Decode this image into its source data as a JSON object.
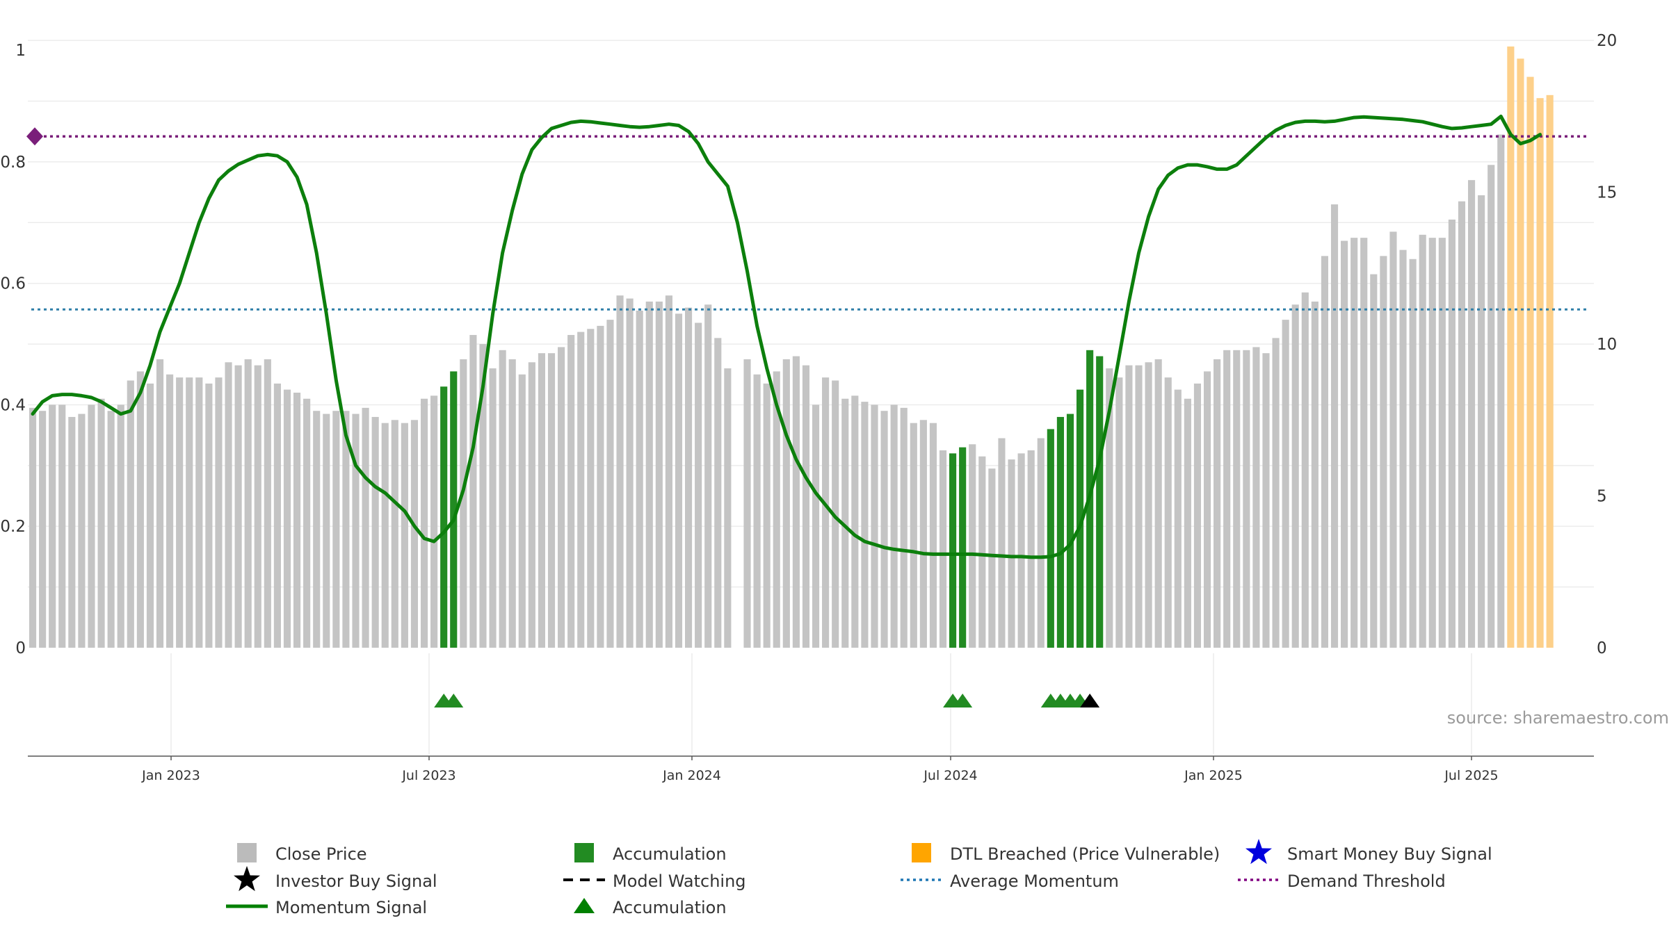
{
  "chart_data": {
    "type": "bar",
    "y_left": {
      "ticks": [
        "0",
        "0.2",
        "0.4",
        "0.6",
        "0.8",
        "1"
      ],
      "range": [
        0,
        1
      ]
    },
    "y_right": {
      "ticks": [
        "0",
        "5",
        "10",
        "15",
        "20"
      ],
      "range": [
        0,
        20
      ]
    },
    "x_ticks": [
      "Jan 2023",
      "Jul 2023",
      "Jan 2024",
      "Jul 2024",
      "Jan 2025",
      "Jul 2025"
    ],
    "grid": true,
    "legend_position": "bottom",
    "source": "source: sharemaestro.com",
    "average_momentum": 0.557,
    "demand_threshold": 0.842,
    "series": {
      "close_price": [
        7.9,
        7.8,
        8.0,
        8.0,
        7.6,
        7.7,
        8.0,
        8.2,
        7.8,
        8.0,
        8.8,
        9.1,
        8.7,
        9.5,
        9.0,
        8.9,
        8.9,
        8.9,
        8.7,
        8.9,
        9.4,
        9.3,
        9.5,
        9.3,
        9.5,
        8.7,
        8.5,
        8.4,
        8.2,
        7.8,
        7.7,
        7.8,
        7.8,
        7.7,
        7.9,
        7.6,
        7.4,
        7.5,
        7.4,
        7.5,
        8.2,
        8.3,
        8.6,
        9.1,
        9.5,
        10.3,
        10.0,
        9.2,
        9.8,
        9.5,
        9.0,
        9.4,
        9.7,
        9.7,
        9.9,
        10.3,
        10.4,
        10.5,
        10.6,
        10.8,
        11.6,
        11.5,
        11.1,
        11.4,
        11.4,
        11.6,
        11.0,
        11.2,
        10.7,
        11.3,
        10.2,
        9.2,
        0,
        9.5,
        9.0,
        8.7,
        9.1,
        9.5,
        9.6,
        9.3,
        8.0,
        8.9,
        8.8,
        8.2,
        8.3,
        8.1,
        8.0,
        7.8,
        8.0,
        7.9,
        7.4,
        7.5,
        7.4,
        6.5,
        6.4,
        6.6,
        6.7,
        6.3,
        5.9,
        6.9,
        6.2,
        6.4,
        6.5,
        6.9,
        7.2,
        7.6,
        7.7,
        8.5,
        9.8,
        9.6,
        9.2,
        8.9,
        9.3,
        9.3,
        9.4,
        9.5,
        8.9,
        8.5,
        8.2,
        8.7,
        9.1,
        9.5,
        9.8,
        9.8,
        9.8,
        9.9,
        9.7,
        10.2,
        10.8,
        11.3,
        11.7,
        11.4,
        12.9,
        14.6,
        13.4,
        13.5,
        13.5,
        12.3,
        12.9,
        13.7,
        13.1,
        12.8,
        13.6,
        13.5,
        13.5,
        14.1,
        14.7,
        15.4,
        14.9,
        15.9,
        16.9
      ],
      "accumulation_bar_indices": [
        42,
        43,
        94,
        95,
        104,
        105,
        106,
        107,
        108,
        109
      ],
      "dtl_breached": [
        19.8,
        19.4,
        18.8,
        18.1,
        18.2
      ],
      "momentum_start_index": 0,
      "momentum_end_index": 156,
      "momentum_points": [
        [
          0,
          0.385
        ],
        [
          1,
          0.405
        ],
        [
          2,
          0.415
        ],
        [
          3,
          0.417
        ],
        [
          4,
          0.417
        ],
        [
          5,
          0.415
        ],
        [
          6,
          0.412
        ],
        [
          7,
          0.405
        ],
        [
          8,
          0.395
        ],
        [
          9,
          0.385
        ],
        [
          10,
          0.39
        ],
        [
          11,
          0.42
        ],
        [
          12,
          0.465
        ],
        [
          13,
          0.52
        ],
        [
          14,
          0.56
        ],
        [
          15,
          0.6
        ],
        [
          16,
          0.65
        ],
        [
          17,
          0.7
        ],
        [
          18,
          0.74
        ],
        [
          19,
          0.77
        ],
        [
          20,
          0.785
        ],
        [
          21,
          0.796
        ],
        [
          22,
          0.803
        ],
        [
          23,
          0.81
        ],
        [
          24,
          0.812
        ],
        [
          25,
          0.81
        ],
        [
          26,
          0.8
        ],
        [
          27,
          0.775
        ],
        [
          28,
          0.73
        ],
        [
          29,
          0.65
        ],
        [
          30,
          0.55
        ],
        [
          31,
          0.44
        ],
        [
          32,
          0.35
        ],
        [
          33,
          0.3
        ],
        [
          34,
          0.28
        ],
        [
          35,
          0.265
        ],
        [
          36,
          0.255
        ],
        [
          37,
          0.24
        ],
        [
          38,
          0.225
        ],
        [
          39,
          0.2
        ],
        [
          40,
          0.18
        ],
        [
          41,
          0.175
        ],
        [
          42,
          0.19
        ],
        [
          43,
          0.21
        ],
        [
          44,
          0.26
        ],
        [
          45,
          0.33
        ],
        [
          46,
          0.43
        ],
        [
          47,
          0.55
        ],
        [
          48,
          0.65
        ],
        [
          49,
          0.72
        ],
        [
          50,
          0.78
        ],
        [
          51,
          0.82
        ],
        [
          52,
          0.84
        ],
        [
          53,
          0.855
        ],
        [
          54,
          0.86
        ],
        [
          55,
          0.865
        ],
        [
          56,
          0.867
        ],
        [
          57,
          0.866
        ],
        [
          58,
          0.864
        ],
        [
          59,
          0.862
        ],
        [
          60,
          0.86
        ],
        [
          61,
          0.858
        ],
        [
          62,
          0.857
        ],
        [
          63,
          0.858
        ],
        [
          64,
          0.86
        ],
        [
          65,
          0.862
        ],
        [
          66,
          0.86
        ],
        [
          67,
          0.85
        ],
        [
          68,
          0.83
        ],
        [
          69,
          0.8
        ],
        [
          70,
          0.78
        ],
        [
          71,
          0.76
        ],
        [
          72,
          0.7
        ],
        [
          73,
          0.62
        ],
        [
          74,
          0.53
        ],
        [
          75,
          0.46
        ],
        [
          76,
          0.4
        ],
        [
          77,
          0.35
        ],
        [
          78,
          0.31
        ],
        [
          79,
          0.28
        ],
        [
          80,
          0.255
        ],
        [
          81,
          0.235
        ],
        [
          82,
          0.215
        ],
        [
          83,
          0.2
        ],
        [
          84,
          0.185
        ],
        [
          85,
          0.175
        ],
        [
          86,
          0.17
        ],
        [
          87,
          0.165
        ],
        [
          88,
          0.162
        ],
        [
          89,
          0.16
        ],
        [
          90,
          0.158
        ],
        [
          91,
          0.155
        ],
        [
          92,
          0.154
        ],
        [
          93,
          0.154
        ],
        [
          94,
          0.154
        ],
        [
          95,
          0.154
        ],
        [
          96,
          0.154
        ],
        [
          97,
          0.153
        ],
        [
          98,
          0.152
        ],
        [
          99,
          0.151
        ],
        [
          100,
          0.15
        ],
        [
          101,
          0.15
        ],
        [
          102,
          0.149
        ],
        [
          103,
          0.149
        ],
        [
          104,
          0.15
        ],
        [
          105,
          0.155
        ],
        [
          106,
          0.17
        ],
        [
          107,
          0.2
        ],
        [
          108,
          0.25
        ],
        [
          109,
          0.31
        ],
        [
          110,
          0.39
        ],
        [
          111,
          0.48
        ],
        [
          112,
          0.57
        ],
        [
          113,
          0.65
        ],
        [
          114,
          0.71
        ],
        [
          115,
          0.755
        ],
        [
          116,
          0.778
        ],
        [
          117,
          0.79
        ],
        [
          118,
          0.795
        ],
        [
          119,
          0.795
        ],
        [
          120,
          0.792
        ],
        [
          121,
          0.788
        ],
        [
          122,
          0.788
        ],
        [
          123,
          0.795
        ],
        [
          124,
          0.81
        ],
        [
          125,
          0.825
        ],
        [
          126,
          0.84
        ],
        [
          127,
          0.852
        ],
        [
          128,
          0.86
        ],
        [
          129,
          0.865
        ],
        [
          130,
          0.867
        ],
        [
          131,
          0.867
        ],
        [
          132,
          0.866
        ],
        [
          133,
          0.867
        ],
        [
          134,
          0.87
        ],
        [
          135,
          0.873
        ],
        [
          136,
          0.874
        ],
        [
          137,
          0.873
        ],
        [
          138,
          0.872
        ],
        [
          139,
          0.871
        ],
        [
          140,
          0.87
        ],
        [
          141,
          0.868
        ],
        [
          142,
          0.866
        ],
        [
          143,
          0.862
        ],
        [
          144,
          0.858
        ],
        [
          145,
          0.855
        ],
        [
          146,
          0.856
        ],
        [
          147,
          0.858
        ],
        [
          148,
          0.86
        ],
        [
          149,
          0.862
        ],
        [
          150,
          0.875
        ],
        [
          151,
          0.845
        ],
        [
          152,
          0.83
        ],
        [
          153,
          0.835
        ],
        [
          154,
          0.845
        ]
      ],
      "accumulation_markers": [
        42,
        43,
        94,
        95,
        104,
        105,
        106,
        107
      ],
      "investor_buy_markers": [
        108
      ]
    },
    "legend": [
      {
        "label": "Close Price",
        "kind": "swatch",
        "color": "#bbbbbb"
      },
      {
        "label": "Accumulation",
        "kind": "swatch",
        "color": "#228b22"
      },
      {
        "label": "DTL Breached (Price Vulnerable)",
        "kind": "swatch",
        "color": "#ffa500"
      },
      {
        "label": "Smart Money Buy Signal",
        "kind": "star",
        "color": "#0000dd"
      },
      {
        "label": "Investor Buy Signal",
        "kind": "star",
        "color": "#000000"
      },
      {
        "label": "Model Watching",
        "kind": "dash",
        "color": "#000000"
      },
      {
        "label": "Average Momentum",
        "kind": "dotted",
        "color": "#1f77b4"
      },
      {
        "label": "Demand Threshold",
        "kind": "dotted",
        "color": "#800080"
      },
      {
        "label": "Momentum Signal",
        "kind": "line",
        "color": "#008000"
      },
      {
        "label": "Accumulation",
        "kind": "triangle",
        "color": "#008000"
      }
    ],
    "colors": {
      "close_price": "#c4c4c4",
      "accumulation": "#228b22",
      "dtl_breached": "#fdd08a",
      "momentum": "#0c7f0c",
      "average_momentum": "#2e7fa8",
      "demand_threshold": "#7a1f7a",
      "grid": "#ececec",
      "investor_buy": "#000000"
    }
  }
}
